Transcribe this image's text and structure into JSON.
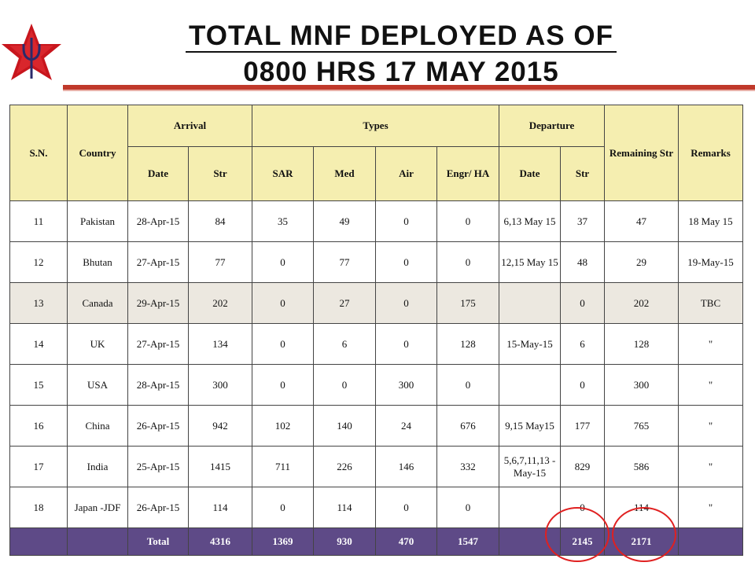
{
  "title": {
    "line1": "TOTAL MNF DEPLOYED AS OF",
    "line2": "0800 HRS 17 MAY 2015"
  },
  "headers": {
    "sn": "S.N.",
    "country": "Country",
    "arrival": "Arrival",
    "types": "Types",
    "departure": "Departure",
    "remaining": "Remaining Str",
    "remarks": "Remarks",
    "arrival_date": "Date",
    "arrival_str": "Str",
    "sar": "SAR",
    "med": "Med",
    "air": "Air",
    "engr": "Engr/ HA",
    "dep_date": "Date",
    "dep_str": "Str"
  },
  "rows": [
    {
      "sn": "11",
      "country": "Pakistan",
      "arr_date": "28-Apr-15",
      "arr_str": "84",
      "sar": "35",
      "med": "49",
      "air": "0",
      "engr": "0",
      "dep_date": "6,13 May 15",
      "dep_str": "37",
      "remaining": "47",
      "remarks": "18 May 15"
    },
    {
      "sn": "12",
      "country": "Bhutan",
      "arr_date": "27-Apr-15",
      "arr_str": "77",
      "sar": "0",
      "med": "77",
      "air": "0",
      "engr": "0",
      "dep_date": "12,15 May 15",
      "dep_str": "48",
      "remaining": "29",
      "remarks": "19-May-15"
    },
    {
      "sn": "13",
      "country": "Canada",
      "arr_date": "29-Apr-15",
      "arr_str": "202",
      "sar": "0",
      "med": "27",
      "air": "0",
      "engr": "175",
      "dep_date": "",
      "dep_str": "0",
      "remaining": "202",
      "remarks": "TBC"
    },
    {
      "sn": "14",
      "country": "UK",
      "arr_date": "27-Apr-15",
      "arr_str": "134",
      "sar": "0",
      "med": "6",
      "air": "0",
      "engr": "128",
      "dep_date": "15-May-15",
      "dep_str": "6",
      "remaining": "128",
      "remarks": "\""
    },
    {
      "sn": "15",
      "country": "USA",
      "arr_date": "28-Apr-15",
      "arr_str": "300",
      "sar": "0",
      "med": "0",
      "air": "300",
      "engr": "0",
      "dep_date": "",
      "dep_str": "0",
      "remaining": "300",
      "remarks": "\""
    },
    {
      "sn": "16",
      "country": "China",
      "arr_date": "26-Apr-15",
      "arr_str": "942",
      "sar": "102",
      "med": "140",
      "air": "24",
      "engr": "676",
      "dep_date": "9,15 May15",
      "dep_str": "177",
      "remaining": "765",
      "remarks": "\""
    },
    {
      "sn": "17",
      "country": "India",
      "arr_date": "25-Apr-15",
      "arr_str": "1415",
      "sar": "711",
      "med": "226",
      "air": "146",
      "engr": "332",
      "dep_date": "5,6,7,11,13 -May-15",
      "dep_str": "829",
      "remaining": "586",
      "remarks": "\""
    },
    {
      "sn": "18",
      "country": "Japan -JDF",
      "arr_date": "26-Apr-15",
      "arr_str": "114",
      "sar": "0",
      "med": "114",
      "air": "0",
      "engr": "0",
      "dep_date": "",
      "dep_str": "0",
      "remaining": "114",
      "remarks": "\""
    }
  ],
  "total": {
    "label": "Total",
    "arr_str": "4316",
    "sar": "1369",
    "med": "930",
    "air": "470",
    "engr": "1547",
    "dep_str": "2145",
    "remaining": "2171"
  },
  "colors": {
    "header_bg": "#f5eeb0",
    "total_bg": "#5e4a87",
    "accent_red": "#c0392b",
    "highlight_circle": "#e02020"
  }
}
